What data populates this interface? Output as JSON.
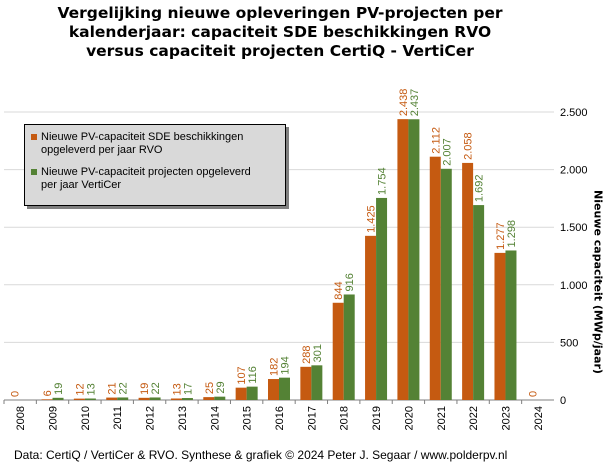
{
  "chart_data": {
    "type": "bar",
    "title_lines": [
      "Vergelijking nieuwe opleveringen PV-projecten per",
      "kalenderjaar: capaciteit SDE beschikkingen RVO",
      "versus capaciteit projecten CertiQ - VertiCer"
    ],
    "categories": [
      "2008",
      "2009",
      "2010",
      "2011",
      "2012",
      "2013",
      "2014",
      "2015",
      "2016",
      "2017",
      "2018",
      "2019",
      "2020",
      "2021",
      "2022",
      "2023",
      "2024"
    ],
    "series": [
      {
        "name_lines": [
          "Nieuwe PV-capaciteit SDE beschikkingen",
          "opgeleverd per jaar RVO"
        ],
        "color": "#c55a11",
        "values": [
          0,
          6,
          12,
          21,
          19,
          13,
          25,
          107,
          182,
          288,
          844,
          1425,
          2438,
          2112,
          2058,
          1277,
          0
        ],
        "labels": [
          "0",
          "6",
          "12",
          "21",
          "19",
          "13",
          "25",
          "107",
          "182",
          "288",
          "844",
          "1.425",
          "2.438",
          "2.112",
          "2.058",
          "1.277",
          "0"
        ]
      },
      {
        "name_lines": [
          "Nieuwe PV-capaciteit projecten opgeleverd",
          "per jaar VertiCer"
        ],
        "color": "#548235",
        "values": [
          null,
          19,
          13,
          22,
          22,
          17,
          29,
          116,
          194,
          301,
          916,
          1754,
          2437,
          2007,
          1692,
          1298,
          null
        ],
        "labels": [
          "",
          "19",
          "13",
          "22",
          "22",
          "17",
          "29",
          "116",
          "194",
          "301",
          "916",
          "1.754",
          "2.437",
          "2.007",
          "1.692",
          "1.298",
          ""
        ]
      }
    ],
    "ylabel": "Nieuwe capaciteit (MWp/jaar)",
    "ylim": [
      0,
      2500
    ],
    "yticks": [
      0,
      500,
      1000,
      1500,
      2000,
      2500
    ],
    "ytick_labels": [
      "0",
      "500",
      "1.000",
      "1.500",
      "2.000",
      "2.500"
    ],
    "grid": true,
    "legend_position": "top-left"
  },
  "source": "Data: CertiQ / VertiCer & RVO. Synthese & grafiek © 2024 Peter J. Segaar / www.polderpv.nl"
}
